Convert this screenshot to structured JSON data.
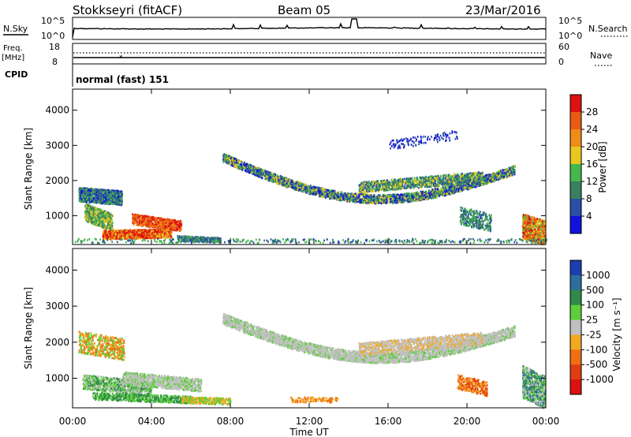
{
  "header": {
    "station": "Stokkseyri (fitACF)",
    "beam": "Beam 05",
    "date": "23/Mar/2016"
  },
  "noise_panel": {
    "left_label": "N.Sky",
    "right_label": "N.Search",
    "ticks": [
      "10^5",
      "10^0"
    ]
  },
  "freq_panel": {
    "left_label_1": "Freq.",
    "left_label_2": "[MHz]",
    "left_ticks": [
      "18",
      "8"
    ],
    "right_label": "Nave",
    "right_ticks": [
      "60",
      "0"
    ],
    "cpid_label": "CPID",
    "cpid_value": "normal (fast) 151"
  },
  "chart_data": [
    {
      "type": "heatmap",
      "title": "",
      "ylabel": "Slant Range [km]",
      "xlabel": "",
      "xlim": [
        "00:00",
        "24:00"
      ],
      "ylim": [
        180,
        4600
      ],
      "y_ticks": [
        "1000",
        "2000",
        "3000",
        "4000"
      ],
      "colorbar": {
        "label": "Power [dB]",
        "ticks": [
          "4",
          "8",
          "12",
          "16",
          "20",
          "24",
          "28"
        ],
        "colors": [
          "#1111dd",
          "#2a4fa8",
          "#3a8060",
          "#44b84c",
          "#e8c820",
          "#ef8c1a",
          "#e85c12",
          "#dd1111"
        ]
      },
      "features": [
        {
          "region": "low range echoes 00:20-05:30",
          "approx_range_km": [
            300,
            1000
          ],
          "power_db": 24
        },
        {
          "region": "arc 07:30-22:30",
          "approx_range_km": [
            1500,
            2500
          ],
          "power_db": 8
        },
        {
          "region": "near end of day",
          "approx_range_km": [
            300,
            1000
          ],
          "power_db": 24
        }
      ]
    },
    {
      "type": "heatmap",
      "title": "",
      "ylabel": "Slant Range [km]",
      "xlabel": "Time UT",
      "xlim": [
        "00:00",
        "24:00"
      ],
      "ylim": [
        180,
        4600
      ],
      "y_ticks": [
        "1000",
        "2000",
        "3000",
        "4000"
      ],
      "x_ticks": [
        "00:00",
        "04:00",
        "08:00",
        "12:00",
        "16:00",
        "20:00",
        "00:00"
      ],
      "colorbar": {
        "label": "Velocity [m s⁻¹]",
        "ticks": [
          "1000",
          "500",
          "100",
          "25",
          "-25",
          "-100",
          "-500",
          "-1000"
        ],
        "colors": [
          "#1b3fb0",
          "#2e6e9c",
          "#2f8a4a",
          "#5ccf3a",
          "#c0c0c0",
          "#f2a820",
          "#ef7012",
          "#e03d10",
          "#dd1111"
        ]
      },
      "features": [
        {
          "region": "low range 00:30-06:30",
          "approx_range_km": [
            300,
            1000
          ],
          "velocity_ms": 100
        },
        {
          "region": "arc 08:00-22:30",
          "approx_range_km": [
            1500,
            2600
          ],
          "velocity_ms": 0
        },
        {
          "region": "patch near 19:30-21:00",
          "approx_range_km": [
            500,
            1000
          ],
          "velocity_ms": -500
        }
      ]
    }
  ]
}
